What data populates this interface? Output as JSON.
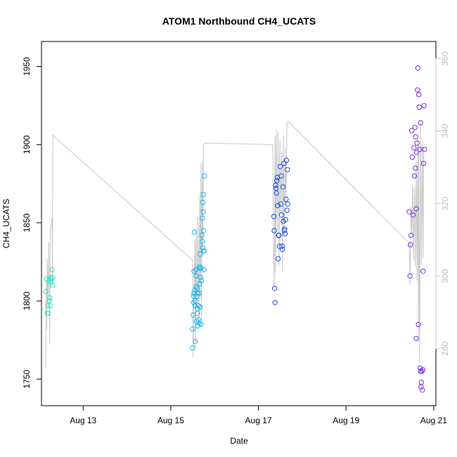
{
  "chart_data": {
    "type": "scatter",
    "title": "ATOM1 Northbound CH4_UCATS",
    "xlabel": "Date",
    "ylabel": "CH4_UCATS",
    "x_ticks": [
      "Aug 13",
      "Aug 15",
      "Aug 17",
      "Aug 19",
      "Aug 21"
    ],
    "x_tick_values": [
      13,
      15,
      17,
      19,
      21
    ],
    "y_ticks": [
      1750,
      1800,
      1850,
      1900,
      1950
    ],
    "y2_ticks": [
      280,
      300,
      320,
      340,
      360
    ],
    "xlim": [
      12.05,
      21.05
    ],
    "ylim": [
      1733,
      1966
    ],
    "y2lim": [
      264.3,
      364.7
    ],
    "colors": {
      "line": "#c8c8c8",
      "right_axis": "#c8c8c8"
    },
    "flights": [
      {
        "color": "#2ee8c6",
        "points": [
          [
            12.15,
            1806
          ],
          [
            12.17,
            1814
          ],
          [
            12.18,
            1792
          ],
          [
            12.19,
            1797
          ],
          [
            12.2,
            1792
          ],
          [
            12.22,
            1813
          ],
          [
            12.23,
            1800
          ],
          [
            12.24,
            1802
          ],
          [
            12.25,
            1797
          ],
          [
            12.26,
            1815
          ],
          [
            12.27,
            1812
          ],
          [
            12.28,
            1814
          ],
          [
            12.29,
            1820
          ],
          [
            12.3,
            1810
          ],
          [
            12.31,
            1815
          ]
        ]
      },
      {
        "color": "#1fb8ee",
        "points": [
          [
            15.5,
            1770
          ],
          [
            15.5,
            1782
          ],
          [
            15.51,
            1791
          ],
          [
            15.52,
            1799
          ],
          [
            15.52,
            1803
          ],
          [
            15.53,
            1805
          ],
          [
            15.53,
            1819
          ],
          [
            15.54,
            1844
          ],
          [
            15.55,
            1807
          ],
          [
            15.55,
            1797
          ],
          [
            15.56,
            1800
          ],
          [
            15.56,
            1774
          ],
          [
            15.57,
            1820
          ],
          [
            15.58,
            1816
          ],
          [
            15.58,
            1809
          ],
          [
            15.59,
            1803
          ],
          [
            15.59,
            1787
          ],
          [
            15.6,
            1808
          ],
          [
            15.61,
            1805
          ],
          [
            15.61,
            1792
          ],
          [
            15.62,
            1795
          ],
          [
            15.62,
            1784
          ],
          [
            15.63,
            1797
          ],
          [
            15.63,
            1788
          ],
          [
            15.64,
            1786
          ],
          [
            15.65,
            1805
          ],
          [
            15.65,
            1821
          ],
          [
            15.66,
            1822
          ],
          [
            15.66,
            1811
          ],
          [
            15.67,
            1796
          ],
          [
            15.67,
            1830
          ],
          [
            15.68,
            1815
          ],
          [
            15.69,
            1785
          ],
          [
            15.69,
            1821
          ],
          [
            15.7,
            1813
          ],
          [
            15.71,
            1842
          ],
          [
            15.72,
            1838
          ],
          [
            15.72,
            1853
          ],
          [
            15.73,
            1863
          ],
          [
            15.73,
            1834
          ],
          [
            15.74,
            1868
          ],
          [
            15.74,
            1857
          ],
          [
            15.75,
            1832
          ],
          [
            15.75,
            1845
          ],
          [
            15.76,
            1832
          ],
          [
            15.76,
            1820
          ],
          [
            15.77,
            1880
          ]
        ]
      },
      {
        "color": "#1d50ee",
        "points": [
          [
            17.35,
            1854
          ],
          [
            17.36,
            1845
          ],
          [
            17.37,
            1808
          ],
          [
            17.38,
            1799
          ],
          [
            17.39,
            1874
          ],
          [
            17.4,
            1872
          ],
          [
            17.41,
            1869
          ],
          [
            17.42,
            1877
          ],
          [
            17.43,
            1879
          ],
          [
            17.44,
            1861
          ],
          [
            17.45,
            1827
          ],
          [
            17.46,
            1842
          ],
          [
            17.47,
            1842
          ],
          [
            17.48,
            1835
          ],
          [
            17.5,
            1886
          ],
          [
            17.51,
            1862
          ],
          [
            17.52,
            1880
          ],
          [
            17.53,
            1855
          ],
          [
            17.54,
            1835
          ],
          [
            17.55,
            1833
          ],
          [
            17.56,
            1873
          ],
          [
            17.57,
            1851
          ],
          [
            17.58,
            1888
          ],
          [
            17.59,
            1845
          ],
          [
            17.6,
            1846
          ],
          [
            17.61,
            1843
          ],
          [
            17.62,
            1852
          ],
          [
            17.63,
            1865
          ],
          [
            17.64,
            1890
          ],
          [
            17.65,
            1858
          ],
          [
            17.66,
            1884
          ],
          [
            17.67,
            1862
          ]
        ]
      },
      {
        "color": "#7a2ee6",
        "points": [
          [
            20.44,
            1857
          ],
          [
            20.46,
            1816
          ],
          [
            20.47,
            1836
          ],
          [
            20.48,
            1842
          ],
          [
            20.5,
            1909
          ],
          [
            20.51,
            1892
          ],
          [
            20.53,
            1855
          ],
          [
            20.55,
            1898
          ],
          [
            20.56,
            1880
          ],
          [
            20.57,
            1911
          ],
          [
            20.58,
            1885
          ],
          [
            20.59,
            1905
          ],
          [
            20.6,
            1859
          ],
          [
            20.6,
            1776
          ],
          [
            20.61,
            1895
          ],
          [
            20.62,
            1901
          ],
          [
            20.63,
            1935
          ],
          [
            20.64,
            1949
          ],
          [
            20.65,
            1785
          ],
          [
            20.66,
            1932
          ],
          [
            20.67,
            1924
          ],
          [
            20.68,
            1897
          ],
          [
            20.69,
            1757
          ],
          [
            20.7,
            1914
          ],
          [
            20.7,
            1755
          ],
          [
            20.71,
            1745
          ],
          [
            20.72,
            1748
          ],
          [
            20.73,
            1755
          ],
          [
            20.74,
            1743
          ],
          [
            20.75,
            1756
          ],
          [
            20.76,
            1819
          ],
          [
            20.77,
            1888
          ],
          [
            20.78,
            1925
          ],
          [
            20.79,
            1897
          ]
        ]
      }
    ],
    "line": [
      [
        12.15,
        1757
      ],
      [
        12.16,
        1812
      ],
      [
        12.17,
        1782
      ],
      [
        12.18,
        1827
      ],
      [
        12.2,
        1800
      ],
      [
        12.22,
        1838
      ],
      [
        12.24,
        1772
      ],
      [
        12.25,
        1845
      ],
      [
        12.27,
        1849
      ],
      [
        12.29,
        1853
      ],
      [
        12.3,
        1810
      ],
      [
        12.31,
        1906
      ],
      [
        15.5,
        1826
      ],
      [
        15.51,
        1764
      ],
      [
        15.53,
        1806
      ],
      [
        15.55,
        1839
      ],
      [
        15.56,
        1770
      ],
      [
        15.58,
        1846
      ],
      [
        15.6,
        1795
      ],
      [
        15.62,
        1854
      ],
      [
        15.64,
        1785
      ],
      [
        15.66,
        1868
      ],
      [
        15.67,
        1801
      ],
      [
        15.69,
        1888
      ],
      [
        15.7,
        1784
      ],
      [
        15.72,
        1890
      ],
      [
        15.73,
        1831
      ],
      [
        15.75,
        1900
      ],
      [
        15.77,
        1901
      ],
      [
        17.33,
        1900
      ],
      [
        17.34,
        1850
      ],
      [
        17.36,
        1808
      ],
      [
        17.38,
        1906
      ],
      [
        17.39,
        1818
      ],
      [
        17.41,
        1910
      ],
      [
        17.43,
        1845
      ],
      [
        17.45,
        1908
      ],
      [
        17.47,
        1823
      ],
      [
        17.49,
        1903
      ],
      [
        17.51,
        1857
      ],
      [
        17.53,
        1896
      ],
      [
        17.55,
        1819
      ],
      [
        17.57,
        1906
      ],
      [
        17.59,
        1842
      ],
      [
        17.61,
        1898
      ],
      [
        17.63,
        1863
      ],
      [
        17.65,
        1913
      ],
      [
        17.67,
        1915
      ],
      [
        20.44,
        1837
      ],
      [
        20.46,
        1810
      ],
      [
        20.48,
        1860
      ],
      [
        20.5,
        1843
      ],
      [
        20.52,
        1874
      ],
      [
        20.54,
        1826
      ],
      [
        20.56,
        1872
      ],
      [
        20.58,
        1822
      ],
      [
        20.6,
        1890
      ],
      [
        20.62,
        1813
      ],
      [
        20.64,
        1902
      ],
      [
        20.65,
        1775
      ],
      [
        20.66,
        1894
      ],
      [
        20.68,
        1760
      ],
      [
        20.7,
        1914
      ],
      [
        20.72,
        1823
      ],
      [
        20.74,
        1902
      ],
      [
        20.76,
        1828
      ],
      [
        20.77,
        1899
      ]
    ]
  }
}
